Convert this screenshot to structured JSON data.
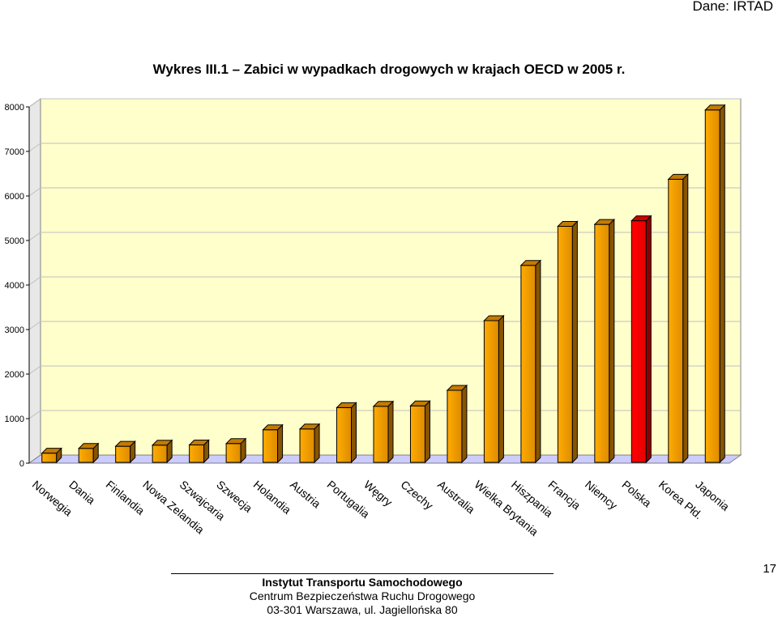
{
  "source": "Dane: IRTAD",
  "title": "Wykres III.1 – Zabici w wypadkach drogowych w krajach OECD w 2005 r.",
  "colors": {
    "bar": "#f59a00",
    "bar_highlight": "#ff0000",
    "plot_bg": "#ffffcc",
    "floor": "#ccccff",
    "grid": "#bfbfbf"
  },
  "chart_data": {
    "type": "bar",
    "categories": [
      "Norwegia",
      "Dania",
      "Finlandia",
      "Nowa Zelandia",
      "Szwajcaria",
      "Szwecja",
      "Holandia",
      "Austria",
      "Portugalia",
      "Węgry",
      "Czechy",
      "Australia",
      "Wielka Brytania",
      "Hiszpania",
      "Francja",
      "Niemcy",
      "Polska",
      "Korea Płd.",
      "Japonia"
    ],
    "values": [
      224,
      331,
      379,
      405,
      409,
      440,
      750,
      768,
      1247,
      1278,
      1286,
      1636,
      3201,
      4442,
      5318,
      5361,
      5444,
      6376,
      7931
    ],
    "highlight": "Polska",
    "ylim": [
      0,
      8000
    ],
    "yticks": [
      "0",
      "1000",
      "2000",
      "3000",
      "4000",
      "5000",
      "6000",
      "7000",
      "8000"
    ],
    "grid": true,
    "legend": "none"
  },
  "footer": {
    "line1": "Instytut Transportu Samochodowego",
    "line2": "Centrum Bezpieczeństwa Ruchu Drogowego",
    "line3": "03-301 Warszawa, ul. Jagiellońska 80"
  },
  "page_number": "17"
}
